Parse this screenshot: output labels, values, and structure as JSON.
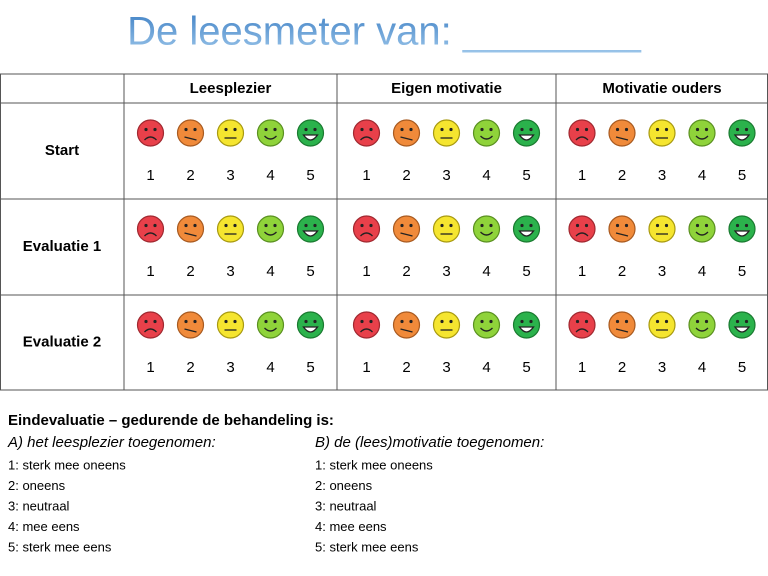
{
  "title": "De leesmeter van: ________",
  "table": {
    "columns": [
      "Leesplezier",
      "Eigen motivatie",
      "Motivatie ouders"
    ],
    "rows": [
      "Start",
      "Evaluatie 1",
      "Evaluatie 2"
    ],
    "scale": [
      1,
      2,
      3,
      4,
      5
    ],
    "scale_colors": [
      "#e8404a",
      "#f08a3a",
      "#f5e52f",
      "#8fd33a",
      "#2bb24c"
    ]
  },
  "final": {
    "heading": "Eindevaluatie – gedurende de behandeling is:",
    "questions": [
      {
        "label": "A) het leesplezier toegenomen:",
        "options": [
          "1: sterk mee oneens",
          "2: oneens",
          "3: neutraal",
          "4: mee eens",
          "5: sterk mee eens"
        ]
      },
      {
        "label": "B) de (lees)motivatie toegenomen:",
        "options": [
          "1: sterk mee oneens",
          "2: oneens",
          "3: neutraal",
          "4: mee eens",
          "5: sterk mee eens"
        ]
      }
    ]
  }
}
